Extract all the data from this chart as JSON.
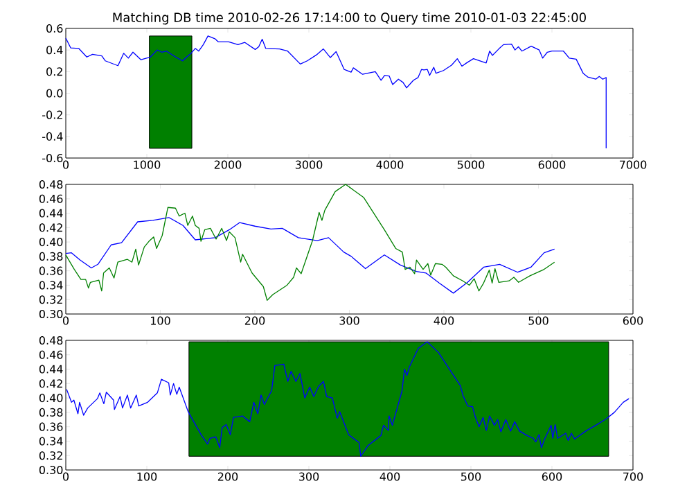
{
  "chart_data": [
    {
      "type": "line",
      "title": "Matching DB time 2010-02-26 17:14:00 to Query time 2010-01-03 22:45:00",
      "xlim": [
        0,
        7000
      ],
      "ylim": [
        -0.6,
        0.6
      ],
      "xticks": [
        0,
        1000,
        2000,
        3000,
        4000,
        5000,
        6000,
        7000
      ],
      "yticks": [
        {
          "value": -0.6,
          "label": "-0.6"
        },
        {
          "value": -0.4,
          "label": "-0.4"
        },
        {
          "value": -0.2,
          "label": "-0.2"
        },
        {
          "value": 0,
          "label": "0.0"
        },
        {
          "value": 0.2,
          "label": "0.2"
        },
        {
          "value": 0.4,
          "label": "0.4"
        },
        {
          "value": 0.6,
          "label": "0.6"
        }
      ],
      "bands": [
        {
          "axis": "x",
          "from": 1031,
          "to": 1556,
          "color": "#008000"
        }
      ],
      "series": [
        {
          "color": "#0000ff",
          "x": [
            0,
            60,
            159,
            259,
            330,
            444,
            487,
            644,
            715,
            772,
            829,
            928,
            1043,
            1128,
            1185,
            1242,
            1356,
            1441,
            1498,
            1541,
            1598,
            1641,
            1697,
            1755,
            1840,
            1883,
            2011,
            2125,
            2210,
            2338,
            2381,
            2424,
            2467,
            2638,
            2738,
            2894,
            2980,
            3094,
            3179,
            3265,
            3336,
            3436,
            3521,
            3549,
            3663,
            3820,
            3891,
            3934,
            3991,
            4034,
            4105,
            4162,
            4205,
            4291,
            4347,
            4390,
            4419,
            4462,
            4490,
            4541,
            4569,
            4661,
            4761,
            4832,
            4889,
            4945,
            5031,
            5188,
            5231,
            5265,
            5344,
            5402,
            5501,
            5544,
            5586,
            5629,
            5744,
            5843,
            5885,
            5943,
            6000,
            6142,
            6214,
            6299,
            6385,
            6441,
            6541,
            6584,
            6627,
            6669,
            6669
          ],
          "values": [
            0.51,
            0.42,
            0.415,
            0.335,
            0.36,
            0.345,
            0.3,
            0.255,
            0.37,
            0.325,
            0.38,
            0.31,
            0.335,
            0.4,
            0.38,
            0.39,
            0.335,
            0.3,
            0.34,
            0.365,
            0.415,
            0.39,
            0.45,
            0.53,
            0.505,
            0.475,
            0.475,
            0.45,
            0.47,
            0.405,
            0.43,
            0.5,
            0.415,
            0.41,
            0.39,
            0.27,
            0.3,
            0.355,
            0.41,
            0.33,
            0.385,
            0.22,
            0.195,
            0.235,
            0.175,
            0.2,
            0.12,
            0.165,
            0.16,
            0.08,
            0.13,
            0.1,
            0.05,
            0.12,
            0.145,
            0.22,
            0.215,
            0.22,
            0.165,
            0.24,
            0.185,
            0.21,
            0.26,
            0.32,
            0.25,
            0.28,
            0.32,
            0.28,
            0.39,
            0.35,
            0.41,
            0.45,
            0.455,
            0.4,
            0.43,
            0.39,
            0.435,
            0.4,
            0.325,
            0.38,
            0.39,
            0.39,
            0.325,
            0.315,
            0.185,
            0.15,
            0.13,
            0.155,
            0.13,
            0.145,
            -0.51
          ]
        }
      ]
    },
    {
      "type": "line",
      "xlim": [
        0,
        600
      ],
      "ylim": [
        0.3,
        0.48
      ],
      "xticks": [
        0,
        100,
        200,
        300,
        400,
        500,
        600
      ],
      "yticks": [
        {
          "value": 0.3,
          "label": "0.30"
        },
        {
          "value": 0.32,
          "label": "0.32"
        },
        {
          "value": 0.34,
          "label": "0.34"
        },
        {
          "value": 0.36,
          "label": "0.36"
        },
        {
          "value": 0.38,
          "label": "0.38"
        },
        {
          "value": 0.4,
          "label": "0.40"
        },
        {
          "value": 0.42,
          "label": "0.42"
        },
        {
          "value": 0.44,
          "label": "0.44"
        },
        {
          "value": 0.46,
          "label": "0.46"
        },
        {
          "value": 0.48,
          "label": "0.48"
        }
      ],
      "series": [
        {
          "color": "#0000ff",
          "x": [
            0,
            6,
            15,
            27,
            34,
            48,
            59,
            76,
            92,
            109,
            124,
            137,
            158,
            173,
            184,
            200,
            217,
            229,
            246,
            266,
            278,
            294,
            302,
            317,
            337,
            354,
            371,
            381,
            395,
            410,
            425,
            442,
            459,
            478,
            492,
            506,
            517
          ],
          "values": [
            0.384,
            0.385,
            0.375,
            0.364,
            0.369,
            0.396,
            0.399,
            0.428,
            0.43,
            0.434,
            0.423,
            0.403,
            0.406,
            0.417,
            0.427,
            0.422,
            0.418,
            0.419,
            0.406,
            0.402,
            0.406,
            0.386,
            0.38,
            0.363,
            0.382,
            0.368,
            0.359,
            0.357,
            0.343,
            0.329,
            0.344,
            0.365,
            0.369,
            0.358,
            0.365,
            0.385,
            0.39
          ]
        },
        {
          "color": "#008000",
          "x": [
            0,
            9,
            16,
            21,
            24,
            26,
            35,
            38,
            40,
            46,
            51,
            55,
            65,
            70,
            74,
            77,
            83,
            88,
            93,
            96,
            102,
            108,
            116,
            120,
            126,
            129,
            134,
            137,
            141,
            143,
            147,
            153,
            159,
            165,
            170,
            173,
            179,
            185,
            187,
            197,
            209,
            213,
            219,
            234,
            241,
            244,
            249,
            261,
            268,
            271,
            274,
            285,
            296,
            315,
            337,
            343,
            349,
            356,
            359,
            364,
            369,
            371,
            378,
            383,
            386,
            391,
            398,
            402,
            410,
            420,
            427,
            432,
            437,
            442,
            448,
            451,
            454,
            458,
            469,
            474,
            479,
            491,
            506,
            517
          ],
          "values": [
            0.382,
            0.362,
            0.348,
            0.348,
            0.336,
            0.344,
            0.347,
            0.332,
            0.357,
            0.364,
            0.35,
            0.372,
            0.376,
            0.372,
            0.39,
            0.368,
            0.393,
            0.401,
            0.407,
            0.391,
            0.409,
            0.448,
            0.447,
            0.436,
            0.44,
            0.423,
            0.436,
            0.423,
            0.419,
            0.401,
            0.417,
            0.419,
            0.404,
            0.419,
            0.402,
            0.414,
            0.406,
            0.372,
            0.383,
            0.357,
            0.338,
            0.319,
            0.327,
            0.34,
            0.351,
            0.364,
            0.356,
            0.402,
            0.441,
            0.43,
            0.444,
            0.47,
            0.48,
            0.462,
            0.417,
            0.404,
            0.391,
            0.386,
            0.362,
            0.365,
            0.356,
            0.375,
            0.362,
            0.37,
            0.354,
            0.37,
            0.369,
            0.365,
            0.353,
            0.346,
            0.34,
            0.349,
            0.332,
            0.343,
            0.361,
            0.343,
            0.363,
            0.344,
            0.346,
            0.351,
            0.344,
            0.353,
            0.362,
            0.372
          ]
        }
      ]
    },
    {
      "type": "line",
      "xlim": [
        0,
        700
      ],
      "ylim": [
        0.3,
        0.48
      ],
      "xticks": [
        0,
        100,
        200,
        300,
        400,
        500,
        600,
        700
      ],
      "yticks": [
        {
          "value": 0.3,
          "label": "0.30"
        },
        {
          "value": 0.32,
          "label": "0.32"
        },
        {
          "value": 0.34,
          "label": "0.34"
        },
        {
          "value": 0.36,
          "label": "0.36"
        },
        {
          "value": 0.38,
          "label": "0.38"
        },
        {
          "value": 0.4,
          "label": "0.40"
        },
        {
          "value": 0.42,
          "label": "0.42"
        },
        {
          "value": 0.44,
          "label": "0.44"
        },
        {
          "value": 0.46,
          "label": "0.46"
        },
        {
          "value": 0.48,
          "label": "0.48"
        }
      ],
      "bands": [
        {
          "axis": "x",
          "from": 152,
          "to": 670,
          "color": "#008000"
        }
      ],
      "series": [
        {
          "color": "#0000ff",
          "x": [
            1,
            5,
            7,
            10,
            15,
            17,
            22,
            27,
            39,
            42,
            47,
            50,
            59,
            60,
            67,
            70,
            76,
            80,
            87,
            90,
            101,
            113,
            118,
            127,
            129,
            133,
            137,
            140,
            151,
            167,
            175,
            178,
            185,
            190,
            193,
            198,
            203,
            207,
            218,
            227,
            232,
            237,
            241,
            245,
            254,
            258,
            269,
            274,
            278,
            284,
            289,
            295,
            301,
            306,
            312,
            318,
            322,
            329,
            335,
            338,
            349,
            362,
            364,
            373,
            389,
            392,
            398,
            399,
            403,
            415,
            418,
            421,
            424,
            435,
            446,
            460,
            477,
            487,
            490,
            496,
            502,
            505,
            510,
            515,
            519,
            523,
            529,
            533,
            537,
            543,
            549,
            554,
            560,
            569,
            577,
            580,
            584,
            587,
            591,
            599,
            601,
            604,
            607,
            617,
            620,
            624,
            628,
            643,
            654,
            667,
            677,
            688,
            695
          ],
          "values": [
            0.412,
            0.4,
            0.394,
            0.397,
            0.378,
            0.394,
            0.376,
            0.386,
            0.399,
            0.407,
            0.392,
            0.408,
            0.397,
            0.384,
            0.402,
            0.386,
            0.404,
            0.386,
            0.404,
            0.389,
            0.394,
            0.407,
            0.426,
            0.421,
            0.404,
            0.42,
            0.405,
            0.415,
            0.381,
            0.349,
            0.336,
            0.344,
            0.346,
            0.331,
            0.359,
            0.363,
            0.349,
            0.373,
            0.375,
            0.367,
            0.394,
            0.378,
            0.404,
            0.391,
            0.41,
            0.445,
            0.447,
            0.423,
            0.437,
            0.423,
            0.434,
            0.4,
            0.415,
            0.402,
            0.416,
            0.423,
            0.402,
            0.4,
            0.372,
            0.381,
            0.349,
            0.338,
            0.319,
            0.334,
            0.348,
            0.362,
            0.355,
            0.375,
            0.362,
            0.41,
            0.44,
            0.431,
            0.443,
            0.469,
            0.478,
            0.463,
            0.434,
            0.417,
            0.404,
            0.389,
            0.388,
            0.375,
            0.36,
            0.373,
            0.355,
            0.375,
            0.362,
            0.37,
            0.353,
            0.37,
            0.354,
            0.367,
            0.354,
            0.348,
            0.344,
            0.339,
            0.349,
            0.331,
            0.343,
            0.362,
            0.344,
            0.363,
            0.344,
            0.351,
            0.341,
            0.351,
            0.343,
            0.355,
            0.362,
            0.371,
            0.38,
            0.394,
            0.399
          ]
        }
      ]
    }
  ]
}
